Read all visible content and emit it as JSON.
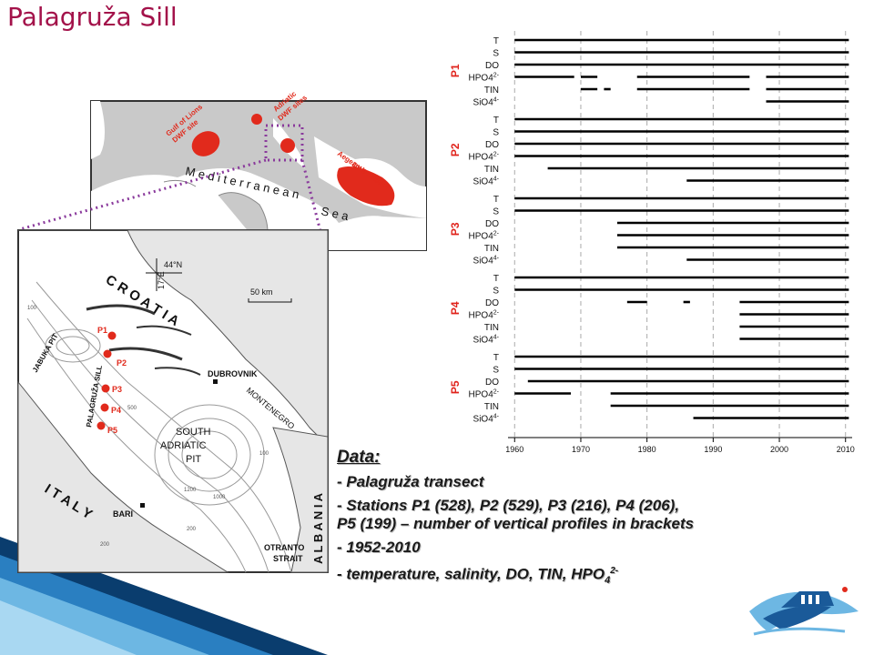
{
  "slide": {
    "title": "Palagruža Sill"
  },
  "overview_map": {
    "sea_label": [
      "M e d i t e r r a n e a n",
      "S e a"
    ],
    "sites": [
      "Gulf of Lions DWF site",
      "Adriatic DWF sites",
      "Aegean-Levantine DWF sites"
    ]
  },
  "detail_map": {
    "countries": [
      "C R O A T I A",
      "I T A L Y",
      "A L B A N I A",
      "MONTENEGRO"
    ],
    "places": [
      "DUBROVNIK",
      "BARI",
      "OTRANTO STRAIT"
    ],
    "basins": [
      "JABUKA PIT",
      "PALAGRUŽA SILL",
      "SOUTH ADRIATIC PIT"
    ],
    "coordinates": [
      "44°N",
      "17°E"
    ],
    "scale": "50 km",
    "stations": [
      "P1",
      "P2",
      "P3",
      "P4",
      "P5"
    ],
    "depths": [
      "100",
      "200",
      "1200",
      "1000",
      "500",
      "200",
      "100"
    ]
  },
  "chart_data": {
    "type": "timeline",
    "x_ticks": [
      1960,
      1970,
      1980,
      1990,
      2000,
      2010
    ],
    "xlim": [
      1959,
      2011
    ],
    "stations": [
      {
        "name": "P1",
        "params": [
          {
            "label": "T",
            "sup": "",
            "spans": [
              [
                1960,
                2010.5
              ]
            ]
          },
          {
            "label": "S",
            "sup": "",
            "spans": [
              [
                1960,
                2010.5
              ]
            ]
          },
          {
            "label": "DO",
            "sup": "",
            "spans": [
              [
                1960,
                2010.5
              ]
            ]
          },
          {
            "label": "HPO4",
            "sup": "2-",
            "spans": [
              [
                1960,
                1969
              ],
              [
                1970,
                1972.5
              ],
              [
                1978.5,
                1995.5
              ],
              [
                1998,
                2010.5
              ]
            ]
          },
          {
            "label": "TIN",
            "sup": "",
            "spans": [
              [
                1970,
                1972.5
              ],
              [
                1973.5,
                1974.5
              ],
              [
                1978.5,
                1995.5
              ],
              [
                1998,
                2010.5
              ]
            ]
          },
          {
            "label": "SiO4",
            "sup": "4-",
            "spans": [
              [
                1998,
                2010.5
              ]
            ]
          }
        ]
      },
      {
        "name": "P2",
        "params": [
          {
            "label": "T",
            "sup": "",
            "spans": [
              [
                1960,
                2010.5
              ]
            ]
          },
          {
            "label": "S",
            "sup": "",
            "spans": [
              [
                1960,
                2010.5
              ]
            ]
          },
          {
            "label": "DO",
            "sup": "",
            "spans": [
              [
                1960,
                2010.5
              ]
            ]
          },
          {
            "label": "HPO4",
            "sup": "2-",
            "spans": [
              [
                1960,
                2010.5
              ]
            ]
          },
          {
            "label": "TIN",
            "sup": "",
            "spans": [
              [
                1965,
                2010.5
              ]
            ]
          },
          {
            "label": "SiO4",
            "sup": "4-",
            "spans": [
              [
                1986,
                2010.5
              ]
            ]
          }
        ]
      },
      {
        "name": "P3",
        "params": [
          {
            "label": "T",
            "sup": "",
            "spans": [
              [
                1960,
                2010.5
              ]
            ]
          },
          {
            "label": "S",
            "sup": "",
            "spans": [
              [
                1960,
                2010.5
              ]
            ]
          },
          {
            "label": "DO",
            "sup": "",
            "spans": [
              [
                1975.5,
                2010.5
              ]
            ]
          },
          {
            "label": "HPO4",
            "sup": "2-",
            "spans": [
              [
                1975.5,
                2010.5
              ]
            ]
          },
          {
            "label": "TIN",
            "sup": "",
            "spans": [
              [
                1975.5,
                2010.5
              ]
            ]
          },
          {
            "label": "SiO4",
            "sup": "4-",
            "spans": [
              [
                1986,
                2010.5
              ]
            ]
          }
        ]
      },
      {
        "name": "P4",
        "params": [
          {
            "label": "T",
            "sup": "",
            "spans": [
              [
                1960,
                2010.5
              ]
            ]
          },
          {
            "label": "S",
            "sup": "",
            "spans": [
              [
                1960,
                2010.5
              ]
            ]
          },
          {
            "label": "DO",
            "sup": "",
            "spans": [
              [
                1977,
                1980
              ],
              [
                1985.5,
                1986.5
              ],
              [
                1994,
                2010.5
              ]
            ]
          },
          {
            "label": "HPO4",
            "sup": "2-",
            "spans": [
              [
                1994,
                2010.5
              ]
            ]
          },
          {
            "label": "TIN",
            "sup": "",
            "spans": [
              [
                1994,
                2010.5
              ]
            ]
          },
          {
            "label": "SiO4",
            "sup": "4-",
            "spans": [
              [
                1994,
                2010.5
              ]
            ]
          }
        ]
      },
      {
        "name": "P5",
        "params": [
          {
            "label": "T",
            "sup": "",
            "spans": [
              [
                1960,
                2010.5
              ]
            ]
          },
          {
            "label": "S",
            "sup": "",
            "spans": [
              [
                1960,
                2010.5
              ]
            ]
          },
          {
            "label": "DO",
            "sup": "",
            "spans": [
              [
                1962,
                2010.5
              ]
            ]
          },
          {
            "label": "HPO4",
            "sup": "2-",
            "spans": [
              [
                1960,
                1968.5
              ],
              [
                1974.5,
                2010.5
              ]
            ]
          },
          {
            "label": "TIN",
            "sup": "",
            "spans": [
              [
                1974.5,
                2010.5
              ]
            ]
          },
          {
            "label": "SiO4",
            "sup": "4-",
            "spans": [
              [
                1987,
                2010.5
              ]
            ]
          }
        ]
      }
    ]
  },
  "data_box": {
    "heading": "Data:",
    "items": [
      "- Palagruža transect",
      "- Stations P1 (528), P2 (529), P3 (216), P4 (206), P5 (199) – number of vertical profiles in brackets",
      "- 1952-2010",
      "- temperature, salinity, DO, TIN, HPO",
      "4",
      "2-"
    ]
  },
  "colors": {
    "title": "#a3124a",
    "station_label": "#e0231b",
    "site_fill": "#e12a1c",
    "dotted_line": "#8a3a9c",
    "stripe_dark": "#0a3d6e",
    "stripe_light": "#6db7e3"
  }
}
